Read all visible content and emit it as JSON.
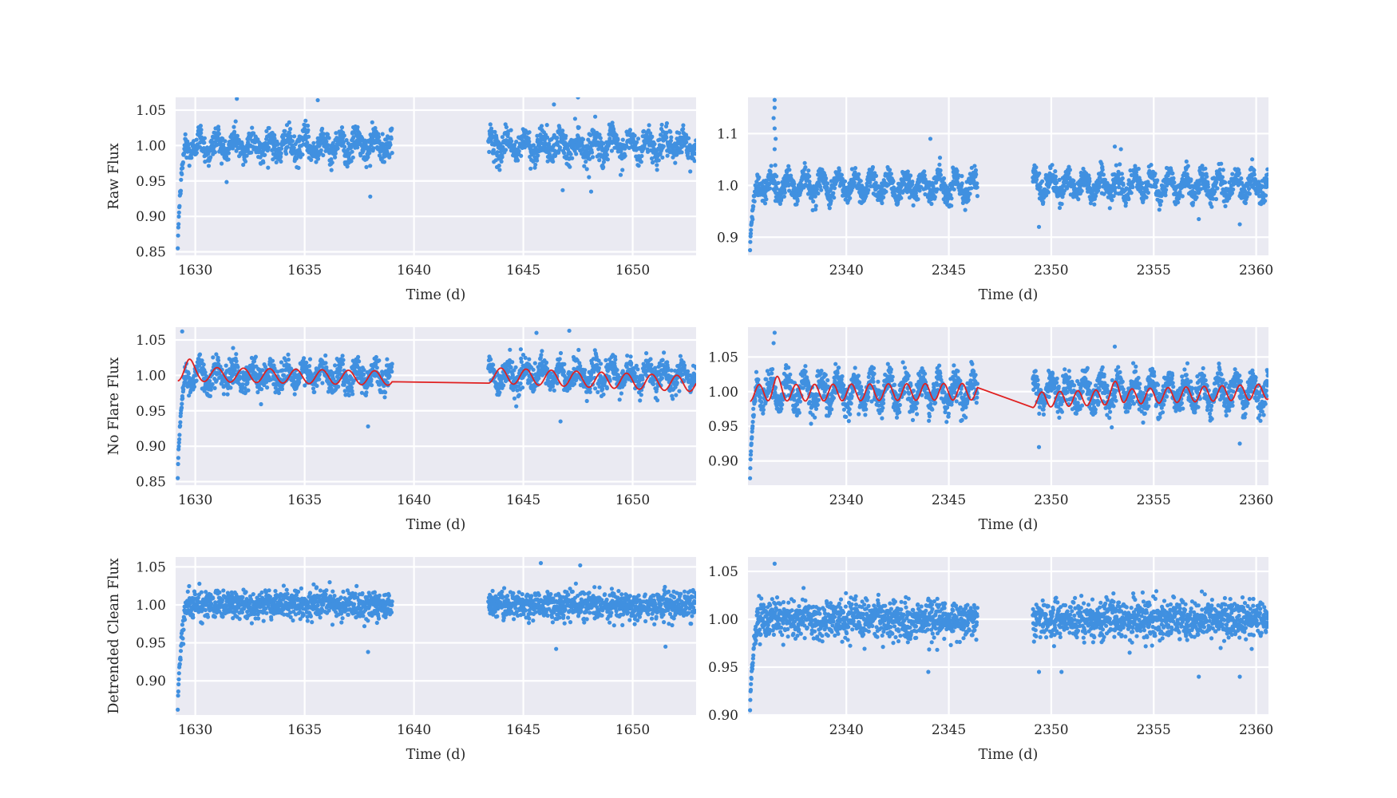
{
  "figure": {
    "columns": 2,
    "rows": 3,
    "point_color": "#4090e0",
    "model_color": "#e02020",
    "background_color": "#eaeaf2",
    "grid_color": "#ffffff"
  },
  "chart_data": [
    {
      "type": "scatter",
      "row": 0,
      "col": 0,
      "xlabel": "Time (d)",
      "ylabel": "Raw Flux",
      "xlim": [
        1629.1,
        1652.9
      ],
      "ylim": [
        0.845,
        1.068
      ],
      "xticks": [
        1630,
        1635,
        1640,
        1645,
        1650
      ],
      "xtick_labels": [
        "1630",
        "1635",
        "1640",
        "1645",
        "1650"
      ],
      "yticks": [
        0.85,
        0.9,
        0.95,
        1.0,
        1.05
      ],
      "ytick_labels": [
        "0.85",
        "0.90",
        "0.95",
        "1.00",
        "1.05"
      ],
      "grid": true,
      "segments": [
        [
          1629.2,
          1639.0
        ],
        [
          1643.4,
          1652.9
        ]
      ],
      "baseline": 1.0,
      "amplitude": 0.012,
      "period": 0.8,
      "noise": 0.026,
      "start_ramp_min": 0.855,
      "outliers": [
        [
          1631.9,
          1.066
        ],
        [
          1635.6,
          1.064
        ],
        [
          1646.4,
          1.058
        ],
        [
          1647.5,
          1.068
        ],
        [
          1638.0,
          0.928
        ],
        [
          1648.1,
          0.935
        ],
        [
          1646.8,
          0.937
        ]
      ],
      "model": null
    },
    {
      "type": "scatter",
      "row": 0,
      "col": 1,
      "xlabel": "Time (d)",
      "ylabel": "",
      "xlim": [
        2335.2,
        2360.6
      ],
      "ylim": [
        0.865,
        1.17
      ],
      "xticks": [
        2340,
        2345,
        2350,
        2355,
        2360
      ],
      "xtick_labels": [
        "2340",
        "2345",
        "2350",
        "2355",
        "2360"
      ],
      "yticks": [
        0.9,
        1.0,
        1.1
      ],
      "ytick_labels": [
        "0.9",
        "1.0",
        "1.1"
      ],
      "grid": true,
      "segments": [
        [
          2335.3,
          2346.4
        ],
        [
          2349.1,
          2360.6
        ]
      ],
      "baseline": 1.0,
      "amplitude": 0.018,
      "period": 0.82,
      "noise": 0.03,
      "start_ramp_min": 0.875,
      "outliers": [
        [
          2336.5,
          1.165
        ],
        [
          2336.5,
          1.15
        ],
        [
          2336.45,
          1.13
        ],
        [
          2336.5,
          1.11
        ],
        [
          2336.55,
          1.09
        ],
        [
          2336.5,
          1.07
        ],
        [
          2344.1,
          1.09
        ],
        [
          2353.1,
          1.075
        ],
        [
          2353.4,
          1.07
        ],
        [
          2359.2,
          0.925
        ],
        [
          2357.2,
          0.935
        ],
        [
          2349.4,
          0.92
        ]
      ],
      "model": null
    },
    {
      "type": "scatter",
      "row": 1,
      "col": 0,
      "xlabel": "Time (d)",
      "ylabel": "No Flare Flux",
      "xlim": [
        1629.1,
        1652.9
      ],
      "ylim": [
        0.845,
        1.068
      ],
      "xticks": [
        1630,
        1635,
        1640,
        1645,
        1650
      ],
      "xtick_labels": [
        "1630",
        "1635",
        "1640",
        "1645",
        "1650"
      ],
      "yticks": [
        0.85,
        0.9,
        0.95,
        1.0,
        1.05
      ],
      "ytick_labels": [
        "0.85",
        "0.90",
        "0.95",
        "1.00",
        "1.05"
      ],
      "grid": true,
      "segments": [
        [
          1629.2,
          1639.0
        ],
        [
          1643.4,
          1652.9
        ]
      ],
      "baseline": 1.0,
      "amplitude": 0.012,
      "period": 0.8,
      "noise": 0.026,
      "start_ramp_min": 0.855,
      "outliers": [
        [
          1629.4,
          1.062
        ],
        [
          1645.6,
          1.06
        ],
        [
          1647.1,
          1.063
        ],
        [
          1637.9,
          0.928
        ],
        [
          1646.7,
          0.935
        ]
      ],
      "model": {
        "segments": [
          {
            "x0": 1629.2,
            "x1": 1639.0,
            "base0": 1.002,
            "base1": 0.996,
            "amp": 0.01,
            "period": 1.2,
            "spike_x": 1629.7,
            "spike_h": 0.012
          },
          {
            "x0": 1643.4,
            "x1": 1652.9,
            "base0": 1.0,
            "base1": 0.988,
            "amp": 0.011,
            "period": 1.15,
            "spike_x": null,
            "spike_h": 0
          }
        ]
      }
    },
    {
      "type": "scatter",
      "row": 1,
      "col": 1,
      "xlabel": "Time (d)",
      "ylabel": "",
      "xlim": [
        2335.2,
        2360.6
      ],
      "ylim": [
        0.865,
        1.093
      ],
      "xticks": [
        2340,
        2345,
        2350,
        2355,
        2360
      ],
      "xtick_labels": [
        "2340",
        "2345",
        "2350",
        "2355",
        "2360"
      ],
      "yticks": [
        0.9,
        0.95,
        1.0,
        1.05
      ],
      "ytick_labels": [
        "0.90",
        "0.95",
        "1.00",
        "1.05"
      ],
      "grid": true,
      "segments": [
        [
          2335.3,
          2346.4
        ],
        [
          2349.1,
          2360.6
        ]
      ],
      "baseline": 1.0,
      "amplitude": 0.018,
      "period": 0.82,
      "noise": 0.028,
      "start_ramp_min": 0.875,
      "outliers": [
        [
          2336.5,
          1.085
        ],
        [
          2336.45,
          1.07
        ],
        [
          2353.1,
          1.065
        ],
        [
          2359.2,
          0.925
        ],
        [
          2349.4,
          0.92
        ]
      ],
      "model": {
        "segments": [
          {
            "x0": 2335.3,
            "x1": 2346.4,
            "base0": 0.998,
            "base1": 1.0,
            "amp": 0.012,
            "period": 0.9,
            "spike_x": 2336.6,
            "spike_h": 0.012
          },
          {
            "x0": 2349.1,
            "x1": 2360.6,
            "base0": 0.988,
            "base1": 1.0,
            "amp": 0.011,
            "period": 0.88,
            "spike_x": 2353.2,
            "spike_h": 0.014
          }
        ]
      }
    },
    {
      "type": "scatter",
      "row": 2,
      "col": 0,
      "xlabel": "Time (d)",
      "ylabel": "Detrended Clean Flux",
      "xlim": [
        1629.1,
        1652.9
      ],
      "ylim": [
        0.855,
        1.063
      ],
      "xticks": [
        1630,
        1635,
        1640,
        1645,
        1650
      ],
      "xtick_labels": [
        "1630",
        "1635",
        "1640",
        "1645",
        "1650"
      ],
      "yticks": [
        0.9,
        0.95,
        1.0,
        1.05
      ],
      "ytick_labels": [
        "0.90",
        "0.95",
        "1.00",
        "1.05"
      ],
      "grid": true,
      "segments": [
        [
          1629.2,
          1639.0
        ],
        [
          1643.4,
          1652.9
        ]
      ],
      "baseline": 1.0,
      "amplitude": 0.0,
      "period": 0.8,
      "noise": 0.024,
      "start_ramp_min": 0.862,
      "outliers": [
        [
          1645.8,
          1.055
        ],
        [
          1647.6,
          1.052
        ],
        [
          1637.9,
          0.938
        ],
        [
          1646.5,
          0.942
        ],
        [
          1651.5,
          0.945
        ]
      ],
      "model": null
    },
    {
      "type": "scatter",
      "row": 2,
      "col": 1,
      "xlabel": "Time (d)",
      "ylabel": "",
      "xlim": [
        2335.2,
        2360.6
      ],
      "ylim": [
        0.9,
        1.065
      ],
      "xticks": [
        2340,
        2345,
        2350,
        2355,
        2360
      ],
      "xtick_labels": [
        "2340",
        "2345",
        "2350",
        "2355",
        "2360"
      ],
      "yticks": [
        0.9,
        0.95,
        1.0,
        1.05
      ],
      "ytick_labels": [
        "0.90",
        "0.95",
        "1.00",
        "1.05"
      ],
      "grid": true,
      "segments": [
        [
          2335.3,
          2346.4
        ],
        [
          2349.1,
          2360.6
        ]
      ],
      "baseline": 1.0,
      "amplitude": 0.0,
      "period": 0.8,
      "noise": 0.026,
      "start_ramp_min": 0.905,
      "outliers": [
        [
          2336.5,
          1.058
        ],
        [
          2344.0,
          0.945
        ],
        [
          2350.5,
          0.945
        ],
        [
          2357.2,
          0.94
        ],
        [
          2359.2,
          0.94
        ],
        [
          2349.4,
          0.945
        ]
      ],
      "model": null
    }
  ]
}
